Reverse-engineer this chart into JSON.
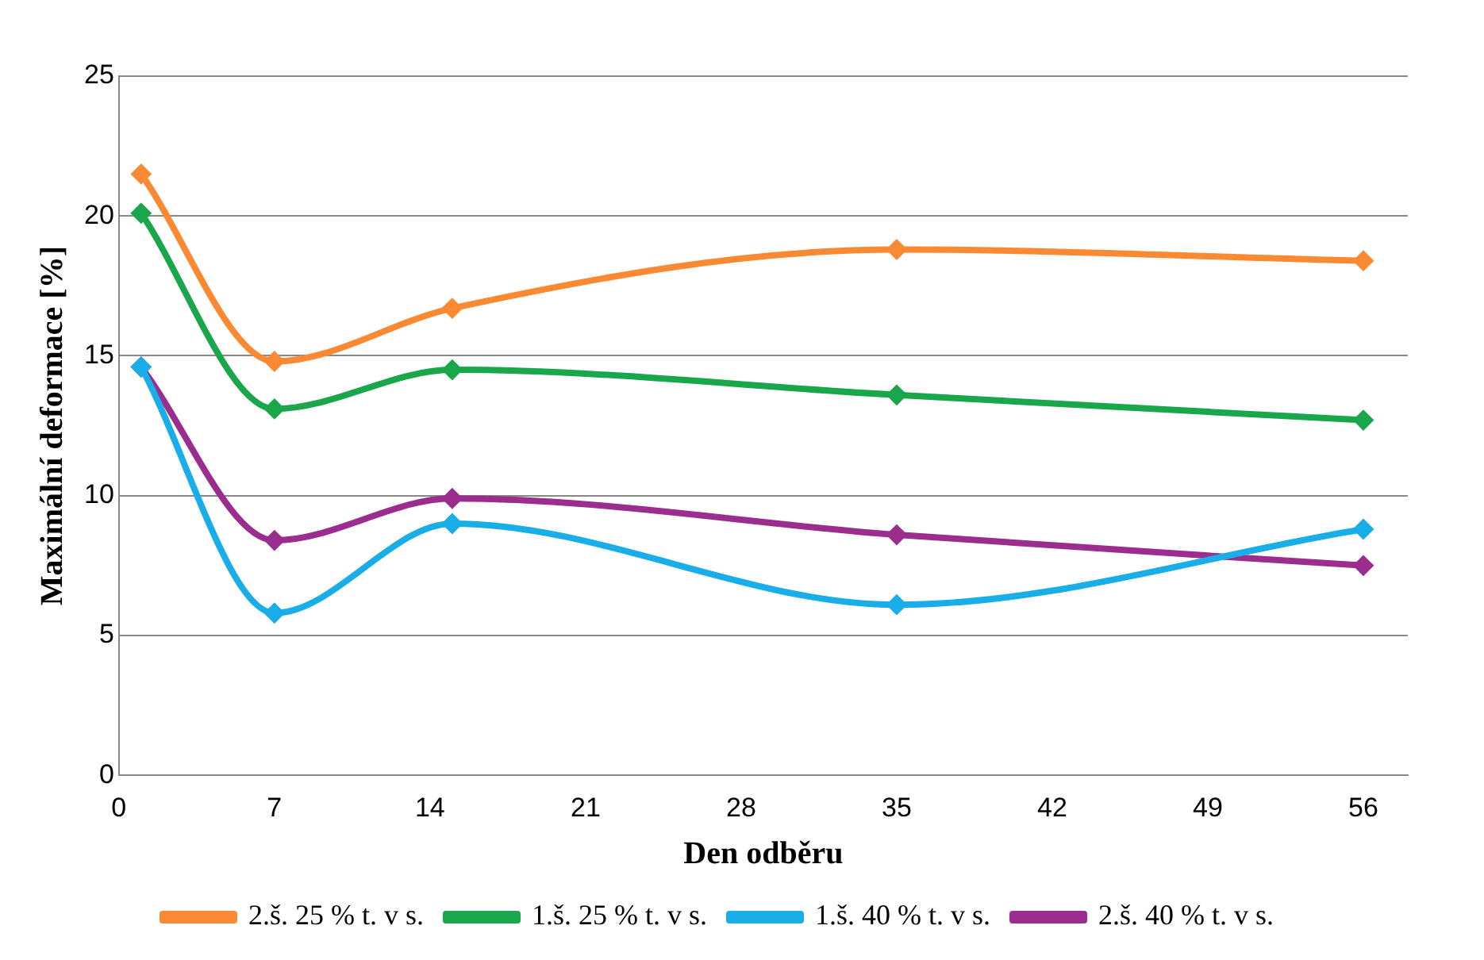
{
  "chart_data": {
    "type": "line",
    "xlabel": "Den odběru",
    "ylabel": "Maximální deformace [%]",
    "x": [
      1,
      7,
      15,
      35,
      56
    ],
    "series": [
      {
        "name": "2.š. 40 % t. v s.",
        "color": "#9b2d8f",
        "values": [
          14.6,
          8.4,
          9.9,
          8.6,
          7.5
        ]
      },
      {
        "name": "1.š. 40 % t. v s.",
        "color": "#1aaee8",
        "values": [
          14.6,
          5.8,
          9.0,
          6.1,
          8.8
        ]
      },
      {
        "name": "1.š. 25 % t. v s.",
        "color": "#1aa64a",
        "values": [
          20.1,
          13.1,
          14.5,
          13.6,
          12.7
        ]
      },
      {
        "name": "2.š. 25 % t. v s.",
        "color": "#f98a33",
        "values": [
          21.5,
          14.8,
          16.7,
          18.8,
          18.4
        ]
      }
    ],
    "xlim": [
      0,
      58
    ],
    "xticks": [
      0,
      7,
      14,
      21,
      28,
      35,
      42,
      49,
      56
    ],
    "ylim": [
      0,
      25
    ],
    "yticks": [
      0,
      5,
      10,
      15,
      20,
      25
    ],
    "grid": "y",
    "legend": "bottom",
    "marker": "diamond",
    "line_style": "solid"
  }
}
